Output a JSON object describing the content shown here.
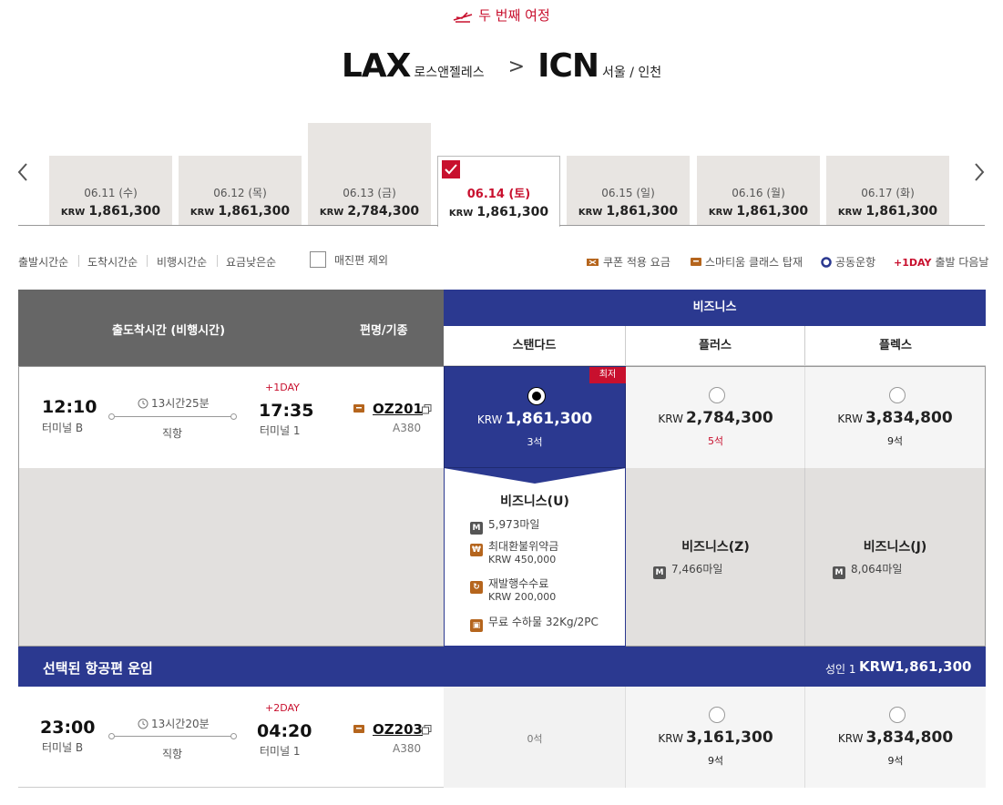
{
  "header": {
    "trip_label": "두 번째 여정",
    "origin_code": "LAX",
    "origin_city": "로스앤젤레스",
    "arrow": ">",
    "dest_code": "ICN",
    "dest_city": "서울 / 인천"
  },
  "dates": [
    {
      "label": "06.11 (수)",
      "currency": "KRW",
      "price": "1,861,300"
    },
    {
      "label": "06.12 (목)",
      "currency": "KRW",
      "price": "1,861,300"
    },
    {
      "label": "06.13 (금)",
      "currency": "KRW",
      "price": "2,784,300"
    },
    {
      "label": "06.14 (토)",
      "currency": "KRW",
      "price": "1,861,300",
      "selected": true
    },
    {
      "label": "06.15 (일)",
      "currency": "KRW",
      "price": "1,861,300"
    },
    {
      "label": "06.16 (월)",
      "currency": "KRW",
      "price": "1,861,300"
    },
    {
      "label": "06.17 (화)",
      "currency": "KRW",
      "price": "1,861,300"
    }
  ],
  "sort": [
    "출발시간순",
    "도착시간순",
    "비행시간순",
    "요금낮은순"
  ],
  "exclude_soldout": "매진편 제외",
  "legend": {
    "coupon": "쿠폰 적용 요금",
    "smartium": "스마티움 클래스 탑재",
    "codeshare": "공동운항",
    "plusday_tag": "+1DAY",
    "plusday_text": "출발 다음날"
  },
  "table": {
    "col_time": "출도착시간 (비행시간)",
    "col_flight": "편명/기종",
    "cabin": "비즈니스",
    "fares": [
      "스탠다드",
      "플러스",
      "플렉스"
    ]
  },
  "flights": [
    {
      "dep": "12:10",
      "dep_term": "터미널 B",
      "duration": "13시간25분",
      "type": "직항",
      "plusday": "+1DAY",
      "arr": "17:35",
      "arr_term": "터미널 1",
      "flight_no": "OZ201",
      "aircraft": "A380",
      "fares": [
        {
          "badge": "최저",
          "currency": "KRW",
          "price": "1,861,300",
          "seats": "3석",
          "selected": true
        },
        {
          "currency": "KRW",
          "price": "2,784,300",
          "seats": "5석"
        },
        {
          "currency": "KRW",
          "price": "3,834,800",
          "seats": "9석"
        }
      ]
    },
    {
      "dep": "23:00",
      "dep_term": "터미널 B",
      "duration": "13시간20분",
      "type": "직항",
      "plusday": "+2DAY",
      "arr": "04:20",
      "arr_term": "터미널 1",
      "flight_no": "OZ203",
      "aircraft": "A380",
      "fares": [
        {
          "seats": "0석"
        },
        {
          "currency": "KRW",
          "price": "3,161,300",
          "seats": "9석"
        },
        {
          "currency": "KRW",
          "price": "3,834,800",
          "seats": "9석"
        }
      ]
    }
  ],
  "details": {
    "standard": {
      "title": "비즈니스(U)",
      "miles": "5,973마일",
      "refund_label": "최대환불위약금",
      "refund_value": "KRW 450,000",
      "reissue_label": "재발행수수료",
      "reissue_value": "KRW 200,000",
      "baggage": "무료 수하물 32Kg/2PC"
    },
    "plus": {
      "title": "비즈니스(Z)",
      "miles": "7,466마일"
    },
    "flex": {
      "title": "비즈니스(J)",
      "miles": "8,064마일"
    }
  },
  "summary": {
    "title": "선택된 항공편 운임",
    "pax": "성인 1",
    "currency": "KRW",
    "total": "1,861,300"
  },
  "colors": {
    "brand_red": "#c8102e",
    "navy": "#2b3990",
    "gray_header": "#666666",
    "brown_icon": "#b5651d"
  }
}
